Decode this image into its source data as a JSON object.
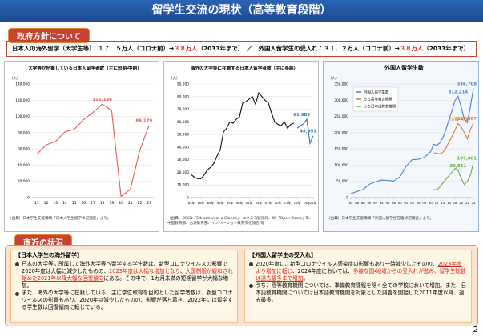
{
  "header": {
    "title": "留学生交流の現状（高等教育段階）"
  },
  "policy": {
    "label": "政府方針について",
    "segments": [
      {
        "text": "日本人の海外留学（大学生等）：１７．５万人（コロナ前）→"
      },
      {
        "text": "３８万人",
        "emphasis": true
      },
      {
        "text": "（2033年まで）　／　外国人留学生の受入れ：３１．２万人（コロナ前）→"
      },
      {
        "text": "３８万人",
        "emphasis": true
      },
      {
        "text": "（2033年まで）"
      }
    ]
  },
  "chart_data": [
    {
      "type": "line",
      "title": "大学等が把握している日本人留学者数（主に短期・中期）",
      "ylabel": "（人）",
      "categories": [
        "11",
        "12",
        "13",
        "14",
        "15",
        "16",
        "17",
        "18",
        "19",
        "20",
        "21",
        "22",
        "23"
      ],
      "ylim": [
        0,
        140000
      ],
      "yticks": [
        0,
        {
          "value": 20000,
          "label": "20,000"
        },
        {
          "value": 40000,
          "label": "40,000"
        },
        {
          "value": 60000,
          "label": "60,000"
        },
        {
          "value": 80000,
          "label": "80,000"
        },
        {
          "value": 100000,
          "label": "100,000"
        },
        {
          "value": 120000,
          "label": "120,000"
        },
        {
          "value": 140000,
          "label": "140,000"
        }
      ],
      "grid": true,
      "series": [
        {
          "color": "#e35b5b",
          "values": [
            53000,
            65000,
            69000,
            81000,
            84000,
            96000,
            105000,
            115146,
            107000,
            1500,
            10000,
            58000,
            89179
          ],
          "value_labels": [
            null,
            null,
            null,
            null,
            null,
            null,
            null,
            "115,146",
            null,
            null,
            null,
            null,
            "89,179"
          ]
        }
      ],
      "source": "（出典）日本学生支援機構「日本人学生留学状況調査」より。"
    },
    {
      "type": "line",
      "title": "海外の大学等に在籍する日本人留学者数（主に長期）",
      "ylabel": "（人）",
      "x": [
        1983,
        1984,
        1985,
        1986,
        1987,
        1988,
        1989,
        1990,
        1991,
        1992,
        1993,
        1994,
        1995,
        1996,
        1997,
        1998,
        1999,
        2000,
        2001,
        2002,
        2003,
        2004,
        2005,
        2006,
        2007,
        2008,
        2009,
        2010,
        2011,
        2012,
        2013,
        2014,
        2015,
        2016,
        2017,
        2018,
        2019,
        2020,
        2021
      ],
      "xlim": [
        1983,
        2021
      ],
      "xticks": [
        {
          "value": 1983,
          "label": "83年"
        },
        {
          "value": 1986,
          "label": "86年"
        },
        {
          "value": 1989,
          "label": "89年"
        },
        {
          "value": 1992,
          "label": "92年"
        },
        {
          "value": 1995,
          "label": "95年"
        },
        {
          "value": 1998,
          "label": "98年"
        },
        {
          "value": 2001,
          "label": "01年"
        },
        {
          "value": 2004,
          "label": "04年"
        },
        {
          "value": 2007,
          "label": "07年"
        },
        {
          "value": 2010,
          "label": "10年"
        },
        {
          "value": 2013,
          "label": "13年"
        },
        {
          "value": 2016,
          "label": "16年"
        },
        {
          "value": 2019,
          "label": "19年"
        },
        {
          "value": 2021,
          "label": "21年"
        }
      ],
      "ylim": [
        0,
        90000
      ],
      "yticks": [
        0,
        {
          "value": 10000,
          "label": "10,000"
        },
        {
          "value": 20000,
          "label": "20,000"
        },
        {
          "value": 30000,
          "label": "30,000"
        },
        {
          "value": 40000,
          "label": "40,000"
        },
        {
          "value": 50000,
          "label": "50,000"
        },
        {
          "value": 60000,
          "label": "60,000"
        },
        {
          "value": 70000,
          "label": "70,000"
        },
        {
          "value": 80000,
          "label": "80,000"
        },
        {
          "value": 90000,
          "label": "90,000"
        }
      ],
      "grid": true,
      "series": [
        {
          "color": "#111111",
          "values": [
            18000,
            16000,
            15000,
            15000,
            18000,
            22000,
            24000,
            27000,
            33000,
            38000,
            52000,
            55000,
            60000,
            59000,
            62000,
            64000,
            75000,
            76000,
            78000,
            80000,
            74000,
            83000,
            80000,
            77000,
            75000,
            67000,
            60000,
            58000,
            57000,
            60000,
            55000,
            58000,
            59000,
            null,
            null,
            null,
            null,
            null,
            null
          ]
        },
        {
          "color": "#2e75b6",
          "values": [
            null,
            null,
            null,
            null,
            null,
            null,
            null,
            null,
            null,
            null,
            null,
            null,
            null,
            null,
            null,
            null,
            null,
            null,
            null,
            null,
            null,
            null,
            null,
            null,
            null,
            null,
            null,
            null,
            null,
            null,
            null,
            null,
            null,
            55000,
            57000,
            58500,
            61989,
            43000,
            48991
          ],
          "value_labels": [
            null,
            null,
            null,
            null,
            null,
            null,
            null,
            null,
            null,
            null,
            null,
            null,
            null,
            null,
            null,
            null,
            null,
            null,
            null,
            null,
            null,
            null,
            null,
            null,
            null,
            null,
            null,
            null,
            null,
            null,
            null,
            null,
            null,
            null,
            null,
            null,
            "61,989",
            null,
            "48,991"
          ]
        }
      ],
      "source": "（出典）OECD「Education at a Glance」、ユネスコ統計局、IIE「Open Doors」等、中国教育部、台湾教育部、イノベーション教育文化協会 等"
    },
    {
      "type": "line",
      "title": "外国人留学生数",
      "ylabel": "（人）",
      "x": [
        1984,
        1986,
        1988,
        1990,
        1992,
        1994,
        1996,
        1998,
        2000,
        2002,
        2004,
        2006,
        2008,
        2010,
        2011,
        2012,
        2013,
        2014,
        2015,
        2016,
        2017,
        2018,
        2019,
        2020,
        2021,
        2022,
        2023,
        2024
      ],
      "xlim": [
        1984,
        2024
      ],
      "xticks": [
        {
          "value": 1984,
          "label": "84"
        },
        {
          "value": 1986,
          "label": "86"
        },
        {
          "value": 1988,
          "label": "88"
        },
        {
          "value": 1990,
          "label": "90"
        },
        {
          "value": 1992,
          "label": "92"
        },
        {
          "value": 1994,
          "label": "94"
        },
        {
          "value": 1996,
          "label": "96"
        },
        {
          "value": 1998,
          "label": "98"
        },
        {
          "value": 2000,
          "label": "00"
        },
        {
          "value": 2002,
          "label": "02"
        },
        {
          "value": 2004,
          "label": "04"
        },
        {
          "value": 2006,
          "label": "06"
        },
        {
          "value": 2008,
          "label": "08"
        },
        {
          "value": 2010,
          "label": "10"
        },
        {
          "value": 2012,
          "label": "12"
        },
        {
          "value": 2014,
          "label": "14"
        },
        {
          "value": 2016,
          "label": "16"
        },
        {
          "value": 2018,
          "label": "18"
        },
        {
          "value": 2020,
          "label": "20"
        },
        {
          "value": 2022,
          "label": "22"
        },
        {
          "value": 2024,
          "label": "24"
        }
      ],
      "ylim": [
        0,
        350000
      ],
      "yticks": [
        0,
        {
          "value": 50000,
          "label": "50,000"
        },
        {
          "value": 100000,
          "label": "100,000"
        },
        {
          "value": 150000,
          "label": "150,000"
        },
        {
          "value": 200000,
          "label": "200,000"
        },
        {
          "value": 250000,
          "label": "250,000"
        },
        {
          "value": 300000,
          "label": "300,000"
        },
        {
          "value": 350000,
          "label": "350,000"
        }
      ],
      "grid": true,
      "legend": "upper left",
      "series": [
        {
          "name": "外国人留学生数",
          "color": "#4a7fd0",
          "values": [
            12000,
            19000,
            25000,
            41000,
            48000,
            54000,
            53000,
            51000,
            64000,
            96000,
            117000,
            118000,
            124000,
            141000,
            164000,
            161000,
            168000,
            184000,
            208000,
            240000,
            267000,
            299000,
            312214,
            279000,
            242000,
            231000,
            279000,
            336708
          ],
          "value_labels": [
            null,
            null,
            null,
            null,
            null,
            null,
            null,
            null,
            null,
            null,
            null,
            null,
            null,
            null,
            null,
            null,
            null,
            null,
            null,
            null,
            null,
            null,
            "312,214",
            null,
            null,
            null,
            null,
            "336,708"
          ]
        },
        {
          "name": "うち高等教育機関",
          "color": "#e07b39",
          "values": [
            null,
            null,
            null,
            null,
            null,
            null,
            null,
            null,
            null,
            null,
            null,
            null,
            null,
            null,
            138000,
            137000,
            135000,
            139000,
            152000,
            171000,
            188000,
            208000,
            228403,
            218000,
            201000,
            181000,
            210000,
            229467
          ],
          "value_labels": [
            null,
            null,
            null,
            null,
            null,
            null,
            null,
            null,
            null,
            null,
            null,
            null,
            null,
            null,
            null,
            null,
            null,
            null,
            null,
            null,
            null,
            null,
            "228,403",
            null,
            null,
            null,
            null,
            "229,467"
          ]
        },
        {
          "name": "うち日本語教育機関",
          "color": "#70ad47",
          "values": [
            null,
            null,
            null,
            null,
            null,
            null,
            null,
            null,
            null,
            null,
            null,
            null,
            null,
            null,
            25000,
            24000,
            32000,
            44000,
            56000,
            68000,
            78000,
            90000,
            83811,
            60000,
            40000,
            50000,
            69000,
            107061
          ],
          "value_labels": [
            null,
            null,
            null,
            null,
            null,
            null,
            null,
            null,
            null,
            null,
            null,
            null,
            null,
            null,
            null,
            null,
            null,
            null,
            null,
            null,
            null,
            null,
            "83,811",
            null,
            null,
            null,
            null,
            "107,061"
          ]
        }
      ],
      "source": "（出典）日本学生支援機構「外国人留学生在籍状況調査」より。"
    }
  ],
  "current": {
    "label": "直近の状況",
    "panels": [
      {
        "heading": "【日本人学生の海外留学】",
        "bullets": [
          [
            {
              "text": "日本の大学等に所属して海外大学等へ留学する学生数は、新型コロナウイルスの影響で2020年度は大幅に減少したものの、"
            },
            {
              "text": "2023年度は大幅な増加となり",
              "emphasis": true
            },
            {
              "text": "、"
            },
            {
              "text": "入国制限が緩和され始めた2021年以降大幅な回復傾向",
              "emphasis": true
            },
            {
              "text": "にある。その中で、1カ月未満の短期留学が大幅な増加。"
            }
          ],
          [
            {
              "text": "また、海外の大学等に在籍している、主に学位取得を目的とした留学者数は、新型コロナウイルスの影響もあり、2020年以減少したものの、影響が落ち着き、2022年には留学する学生数は回復傾向に転じている。"
            }
          ]
        ]
      },
      {
        "heading": "【外国人留学生の受入れ】",
        "bullets": [
          [
            {
              "text": "2020年度に、新型コロナウイルス感染症の影響もあり一時減少したものの、"
            },
            {
              "text": "2023年度より増加に転じ",
              "emphasis": true
            },
            {
              "text": "、2024年度においては、"
            },
            {
              "text": "多様な国・地域からの受入れが進み、留学生総数は過去最多まで増加",
              "emphasis": true
            },
            {
              "text": "。"
            }
          ],
          [
            {
              "text": "うち、高等教育機関については、準備教育課程を除く全ての学校において増加。また、日本語教育機関については日本語教育機関を対象とした調査を開始した2011年度以降、過去最多。"
            }
          ]
        ]
      }
    ]
  },
  "page_number": "2"
}
